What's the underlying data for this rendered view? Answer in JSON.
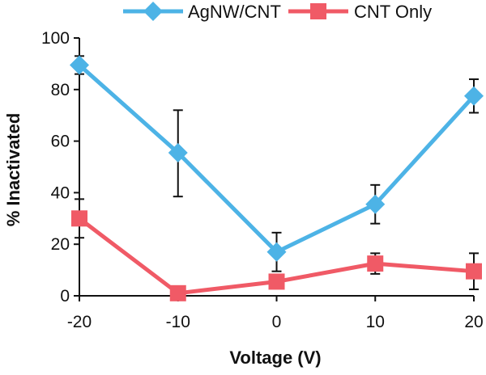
{
  "chart_data": {
    "type": "line",
    "x": [
      -20,
      -10,
      0,
      10,
      20
    ],
    "x_tick_labels": [
      "-20",
      "-10",
      "0",
      "10",
      "20"
    ],
    "y_ticks": [
      0,
      20,
      40,
      60,
      80,
      100
    ],
    "y_tick_labels": [
      "0",
      "20",
      "40",
      "60",
      "80",
      "100"
    ],
    "xlim": [
      -20,
      20
    ],
    "ylim": [
      0,
      100
    ],
    "xlabel": "Voltage (V)",
    "ylabel": "% Inactivated",
    "title": "",
    "grid": false,
    "legend_position": "top",
    "series": [
      {
        "name": "AgNW/CNT",
        "color": "#4db3e6",
        "marker": "diamond",
        "values": [
          89.5,
          55.5,
          17,
          35.5,
          77.5
        ],
        "error_upper": [
          93,
          72,
          24.5,
          43,
          84
        ],
        "error_lower": [
          86,
          38.5,
          9.5,
          28,
          71
        ]
      },
      {
        "name": "CNT Only",
        "color": "#f05a66",
        "marker": "square",
        "values": [
          30,
          1,
          5.5,
          12.5,
          9.5
        ],
        "error_upper": [
          37.5,
          1,
          5.5,
          16.5,
          16.5
        ],
        "error_lower": [
          22.5,
          1,
          5.5,
          8.5,
          2.5
        ]
      }
    ]
  }
}
